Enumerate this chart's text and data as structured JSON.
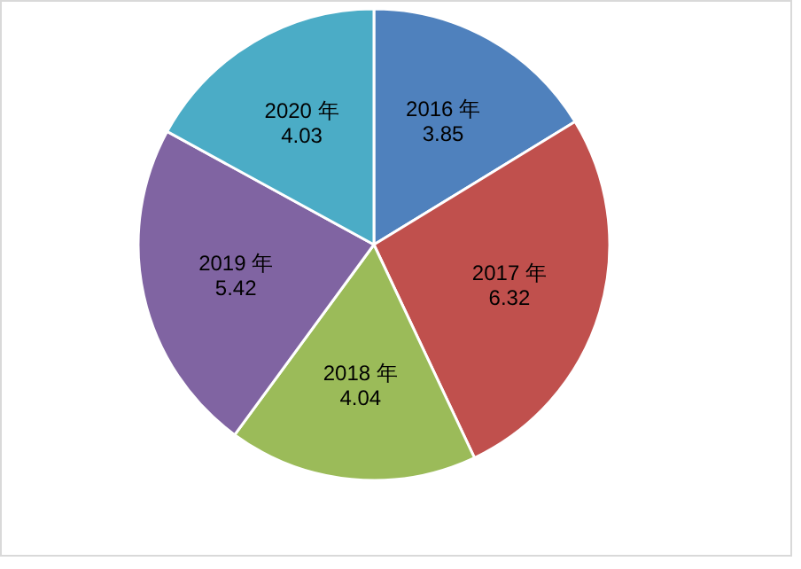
{
  "chart_data": {
    "type": "pie",
    "categories": [
      "2016 年",
      "2017 年",
      "2018 年",
      "2019 年",
      "2020 年"
    ],
    "values": [
      3.85,
      6.32,
      4.04,
      5.42,
      4.03
    ],
    "colors": [
      "#4f81bd",
      "#c0504d",
      "#9bbb59",
      "#8064a2",
      "#4bacc6"
    ],
    "data_labels": true
  }
}
